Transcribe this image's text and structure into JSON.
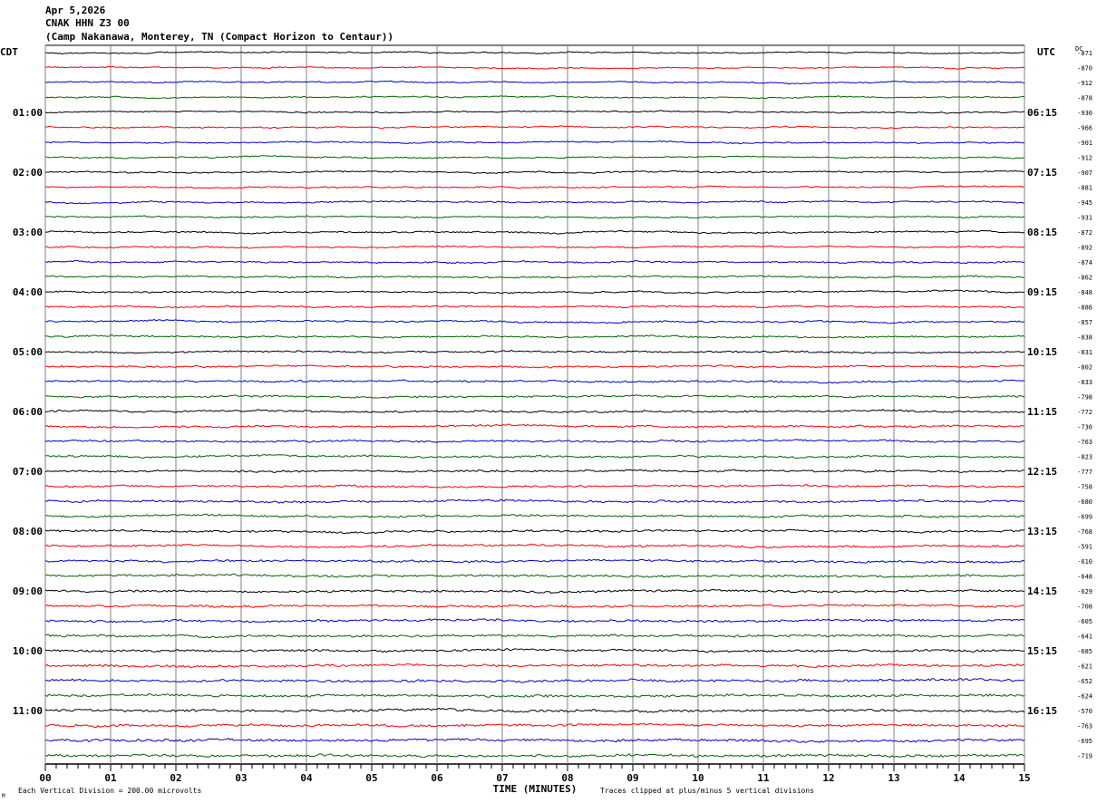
{
  "header": {
    "date": "Apr 5,2026",
    "station": "CNAK HHN Z3 00",
    "location": "(Camp Nakanawa, Monterey, TN (Compact Horizon to Centaur))"
  },
  "left_axis_title": "CDT",
  "right_axis_title": "UTC",
  "dc_title": "DC",
  "footer": {
    "scale_note": "Each Vertical Division =  200.00 microvolts",
    "xlabel": "TIME (MINUTES)",
    "clip_note": "Traces clipped at plus/minus 5 vertical divisions",
    "corner_mark": "M"
  },
  "colors": {
    "trace_cycle": [
      "#000000",
      "#ff0000",
      "#0000cc",
      "#006400"
    ],
    "grid": "#808080"
  },
  "chart_data": {
    "type": "line",
    "x_range": [
      0,
      15
    ],
    "x_ticks": [
      "00",
      "01",
      "02",
      "03",
      "04",
      "05",
      "06",
      "07",
      "08",
      "09",
      "10",
      "11",
      "12",
      "13",
      "14",
      "15"
    ],
    "traces_per_hour": 4,
    "left_labels": [
      "01:00",
      "02:00",
      "03:00",
      "04:00",
      "05:00",
      "06:00",
      "07:00",
      "08:00",
      "09:00",
      "10:00",
      "11:00"
    ],
    "right_labels": [
      "06:15",
      "07:15",
      "08:15",
      "09:15",
      "10:15",
      "11:15",
      "12:15",
      "13:15",
      "14:15",
      "15:15",
      "16:15"
    ],
    "label_start_trace": 4,
    "dc_offsets": [
      "-871",
      "-870",
      "-912",
      "-878",
      "-930",
      "-966",
      "-901",
      "-912",
      "-907",
      "-881",
      "-945",
      "-931",
      "-872",
      "-892",
      "-874",
      "-862",
      "-848",
      "-886",
      "-857",
      "-838",
      "-831",
      "-802",
      "-833",
      "-798",
      "-772",
      "-730",
      "-763",
      "-823",
      "-777",
      "-758",
      "-680",
      "-699",
      "-768",
      "-591",
      "-610",
      "-648",
      "-629",
      "-708",
      "-605",
      "-641",
      "-685",
      "-621",
      "-652",
      "-624",
      "-570",
      "-763",
      "-695",
      "-719"
    ],
    "grid": true
  }
}
